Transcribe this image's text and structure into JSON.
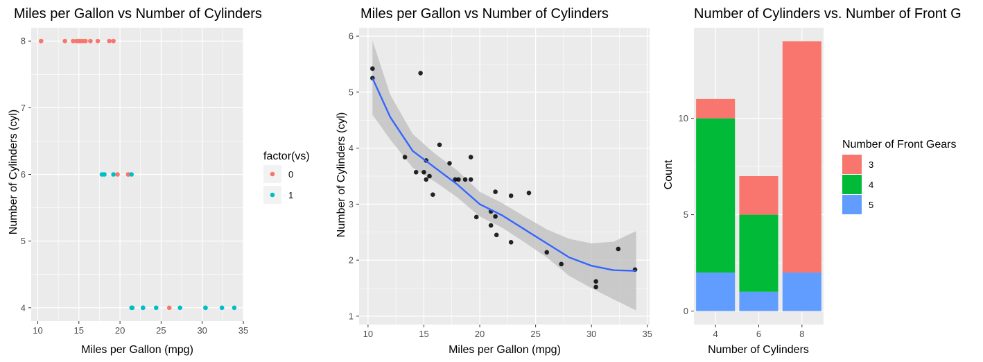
{
  "chart_data": [
    {
      "type": "scatter",
      "title": "Miles per Gallon vs Number of Cylinders",
      "xlabel": "Miles per Gallon (mpg)",
      "ylabel": "Number of Cylinders (cyl)",
      "xlim": [
        9.2,
        35
      ],
      "ylim": [
        3.8,
        8.2
      ],
      "xticks": [
        10,
        15,
        20,
        25,
        30,
        35
      ],
      "yticks": [
        4,
        5,
        6,
        7,
        8
      ],
      "grid": true,
      "legend": {
        "title": "factor(vs)",
        "position": "right",
        "entries": [
          {
            "label": "0",
            "color": "#F8766D"
          },
          {
            "label": "1",
            "color": "#00BFC4"
          }
        ]
      },
      "series": [
        {
          "name": "0",
          "color": "#F8766D",
          "points": [
            [
              10.4,
              8
            ],
            [
              10.4,
              8
            ],
            [
              13.3,
              8
            ],
            [
              14.3,
              8
            ],
            [
              14.7,
              8
            ],
            [
              15.0,
              8
            ],
            [
              15.2,
              8
            ],
            [
              15.5,
              8
            ],
            [
              15.8,
              8
            ],
            [
              16.4,
              8
            ],
            [
              17.3,
              8
            ],
            [
              18.7,
              8
            ],
            [
              19.2,
              8
            ],
            [
              19.7,
              6
            ],
            [
              21.0,
              6
            ],
            [
              21.0,
              6
            ],
            [
              26.0,
              4
            ]
          ]
        },
        {
          "name": "1",
          "color": "#00BFC4",
          "points": [
            [
              17.8,
              6
            ],
            [
              18.1,
              6
            ],
            [
              19.2,
              6
            ],
            [
              21.4,
              6
            ],
            [
              21.4,
              4
            ],
            [
              21.5,
              4
            ],
            [
              22.8,
              4
            ],
            [
              22.8,
              4
            ],
            [
              24.4,
              4
            ],
            [
              27.3,
              4
            ],
            [
              30.4,
              4
            ],
            [
              30.4,
              4
            ],
            [
              32.4,
              4
            ],
            [
              33.9,
              4
            ]
          ]
        }
      ]
    },
    {
      "type": "scatter",
      "title": "Miles per Gallon vs Number of Cylinders",
      "xlabel": "Miles per Gallon (mpg)",
      "ylabel": "Number of Cylinders (cyl)",
      "xlim": [
        9.2,
        35.2
      ],
      "ylim": [
        0.85,
        6.15
      ],
      "xticks": [
        10,
        15,
        20,
        25,
        30,
        35
      ],
      "yticks": [
        1,
        2,
        3,
        4,
        5,
        6
      ],
      "grid": true,
      "point_color": "#000000",
      "points": [
        [
          10.4,
          5.42
        ],
        [
          10.4,
          5.25
        ],
        [
          13.3,
          3.84
        ],
        [
          14.3,
          3.57
        ],
        [
          14.7,
          5.34
        ],
        [
          15.0,
          3.57
        ],
        [
          15.2,
          3.78
        ],
        [
          15.2,
          3.44
        ],
        [
          15.5,
          3.5
        ],
        [
          15.8,
          3.17
        ],
        [
          16.4,
          4.06
        ],
        [
          17.3,
          3.73
        ],
        [
          17.8,
          3.44
        ],
        [
          18.1,
          3.44
        ],
        [
          18.7,
          3.44
        ],
        [
          19.2,
          3.44
        ],
        [
          19.2,
          3.84
        ],
        [
          19.7,
          2.77
        ],
        [
          21.0,
          2.62
        ],
        [
          21.0,
          2.87
        ],
        [
          21.4,
          3.22
        ],
        [
          21.4,
          2.78
        ],
        [
          21.5,
          2.45
        ],
        [
          22.8,
          3.15
        ],
        [
          22.8,
          2.32
        ],
        [
          24.4,
          3.2
        ],
        [
          26.0,
          2.14
        ],
        [
          27.3,
          1.93
        ],
        [
          30.4,
          1.52
        ],
        [
          30.4,
          1.62
        ],
        [
          32.4,
          2.2
        ],
        [
          33.9,
          1.83
        ]
      ],
      "smooth": {
        "color": "#3366FF",
        "band_color": "#bdbdbd",
        "x": [
          10.4,
          12,
          14,
          16,
          18,
          20,
          22,
          24,
          26,
          28,
          30,
          32,
          34
        ],
        "y": [
          5.25,
          4.55,
          3.95,
          3.65,
          3.35,
          3.0,
          2.8,
          2.55,
          2.3,
          2.05,
          1.9,
          1.82,
          1.81
        ],
        "lower": [
          4.6,
          4.15,
          3.65,
          3.4,
          3.12,
          2.78,
          2.58,
          2.32,
          2.05,
          1.72,
          1.5,
          1.3,
          1.1
        ],
        "upper": [
          5.92,
          4.95,
          4.25,
          3.9,
          3.6,
          3.22,
          3.02,
          2.78,
          2.55,
          2.38,
          2.3,
          2.33,
          2.52
        ]
      }
    },
    {
      "type": "bar",
      "title": "Number of Cylinders vs. Number of Front G",
      "xlabel": "Number of Cylinders",
      "ylabel": "Count",
      "categories": [
        "4",
        "6",
        "8"
      ],
      "ylim": [
        -0.7,
        14.7
      ],
      "yticks": [
        0,
        5,
        10
      ],
      "grid": true,
      "stacked": true,
      "legend": {
        "title": "Number of Front Gears",
        "position": "right",
        "entries": [
          {
            "label": "3",
            "color": "#F8766D"
          },
          {
            "label": "4",
            "color": "#00BA38"
          },
          {
            "label": "5",
            "color": "#619CFF"
          }
        ]
      },
      "series": [
        {
          "name": "5",
          "color": "#619CFF",
          "values": [
            2,
            1,
            2
          ]
        },
        {
          "name": "4",
          "color": "#00BA38",
          "values": [
            8,
            4,
            0
          ]
        },
        {
          "name": "3",
          "color": "#F8766D",
          "values": [
            1,
            2,
            12
          ]
        }
      ]
    }
  ]
}
